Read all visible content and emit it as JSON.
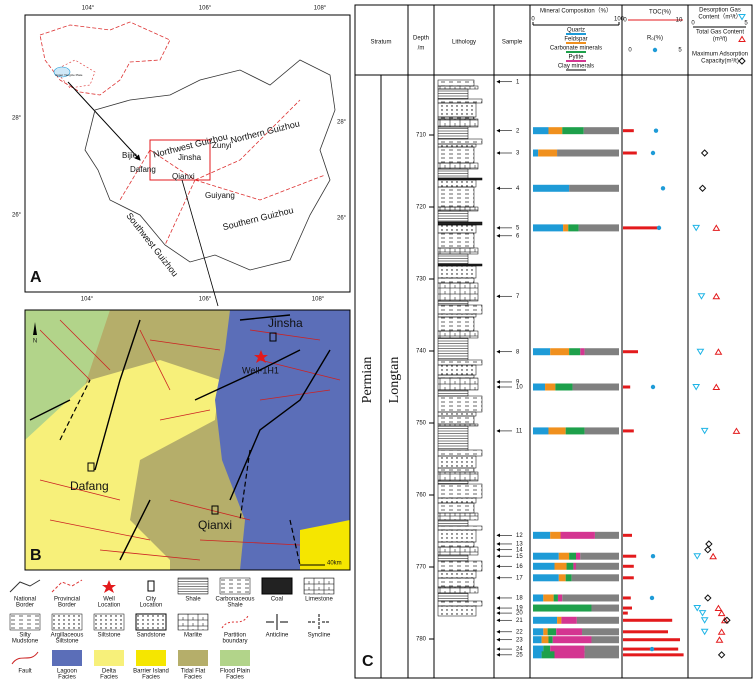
{
  "panel_a": {
    "label": "A",
    "top_lon": [
      "104°",
      "106°",
      "108°"
    ],
    "bottom_lon": [
      "104°",
      "106°",
      "108°"
    ],
    "left_lat": [
      "28°",
      "26°"
    ],
    "right_lat": [
      "28°",
      "26°"
    ],
    "inset": "Upper Yangtze Plate",
    "cities": [
      "Zunyi",
      "Bijie",
      "Jinsha",
      "Dafang",
      "Qianxi",
      "Guiyang"
    ],
    "regions": [
      "Northwest Guizhou",
      "Northern Guizhou",
      "Southwest Guizhou",
      "Southern Guizhou"
    ]
  },
  "panel_b": {
    "label": "B",
    "north": "N",
    "cities": [
      "Jinsha",
      "Dafang",
      "Qianxi"
    ],
    "well": "Well-1H1",
    "scale": "40km"
  },
  "legend": [
    [
      "National",
      "Border"
    ],
    [
      "Provincial",
      "Border"
    ],
    [
      "Well",
      "Location"
    ],
    [
      "City",
      "Location"
    ],
    [
      "Shale"
    ],
    [
      "Carbonaceous",
      "Shale"
    ],
    [
      "Coal"
    ],
    [
      "Limestone"
    ],
    [
      "Silty",
      "Mudstone"
    ],
    [
      "Argillaceous",
      "Siltstone"
    ],
    [
      "Siltstone"
    ],
    [
      "Sandstone"
    ],
    [
      "Marlite"
    ],
    [
      "Partition",
      "boundary"
    ],
    [
      "Anticline"
    ],
    [
      "Syncline"
    ],
    [
      "Fault"
    ],
    [
      "Lagoon",
      "Facies"
    ],
    [
      "Delta",
      "Facies"
    ],
    [
      "Barrier Island",
      "Facies"
    ],
    [
      "Tidal Flat",
      "Facies"
    ],
    [
      "Flood Plain",
      "Facies"
    ]
  ],
  "panel_c": {
    "label": "C",
    "headers": {
      "stratum": "Stratum",
      "depth": [
        "Depth",
        "/m"
      ],
      "lithology": "Lithology",
      "sample": "Sample"
    },
    "system": "Permian",
    "formation": "Longtan",
    "depth_ticks": [
      710,
      720,
      730,
      740,
      750,
      760,
      770,
      780
    ],
    "mineral": {
      "title": "Mineral Composition（%）",
      "axis": [
        0,
        100
      ],
      "names": [
        "Quartz",
        "Feldspar",
        "Carbonate minerals",
        "Pytite",
        "Clay minerals"
      ],
      "colors": [
        "#1e9bd7",
        "#f0901e",
        "#1ea04b",
        "#d43591",
        "#808080"
      ]
    },
    "toc": {
      "title": "TOC(%)",
      "axis": [
        0,
        10
      ],
      "color": "#e31a1c"
    },
    "ro": {
      "title": "Rₒ(%)",
      "axis": [
        0,
        5
      ],
      "color": "#1e9bd7"
    },
    "gas": {
      "titles": [
        [
          "Desorption Gas",
          "Content（m³/t）"
        ],
        [
          "Total Gas Content",
          "(m³/t)"
        ],
        [
          "Maximum Adsorption",
          "Capacity(m³/t)"
        ]
      ],
      "axis": [
        0,
        5
      ],
      "colors": [
        "#1eb4e6",
        "#e31a1c",
        "#111111"
      ]
    },
    "samples": [
      {
        "name": "1",
        "depth": 702.6,
        "composition": null,
        "toc": null,
        "ro": null,
        "desorption": null,
        "total": null,
        "adsorption": null
      },
      {
        "name": "2",
        "depth": 709.4,
        "composition": [
          18,
          16,
          25,
          0,
          41
        ],
        "toc": 1.8,
        "ro": 2.6,
        "desorption": null,
        "total": null,
        "adsorption": null
      },
      {
        "name": "3",
        "depth": 712.5,
        "composition": [
          6,
          22,
          0,
          0,
          72
        ],
        "toc": 2.3,
        "ro": 2.3,
        "desorption": null,
        "total": null,
        "adsorption": 1.1
      },
      {
        "name": "4",
        "depth": 717.4,
        "composition": [
          42,
          0,
          0,
          0,
          58
        ],
        "toc": null,
        "ro": 3.3,
        "desorption": null,
        "total": null,
        "adsorption": 0.9
      },
      {
        "name": "5",
        "depth": 722.9,
        "composition": [
          35,
          6,
          12,
          0,
          47
        ],
        "toc": 6.2,
        "ro": 2.9,
        "desorption": 0.3,
        "total": 2.2,
        "adsorption": null
      },
      {
        "name": "6",
        "depth": 724.0,
        "composition": null,
        "toc": null,
        "ro": null,
        "desorption": null,
        "total": null,
        "adsorption": null
      },
      {
        "name": "7",
        "depth": 732.4,
        "composition": null,
        "toc": null,
        "ro": null,
        "desorption": 0.8,
        "total": 2.2,
        "adsorption": null
      },
      {
        "name": "8",
        "depth": 740.1,
        "composition": [
          20,
          22,
          13,
          5,
          40
        ],
        "toc": 2.5,
        "ro": null,
        "desorption": 0.7,
        "total": 2.4,
        "adsorption": null
      },
      {
        "name": "9",
        "depth": 744.3,
        "composition": null,
        "toc": null,
        "ro": null,
        "desorption": null,
        "total": null,
        "adsorption": null
      },
      {
        "name": "10",
        "depth": 745.0,
        "composition": [
          14,
          12,
          20,
          0,
          54
        ],
        "toc": 1.2,
        "ro": 2.3,
        "desorption": 0.3,
        "total": 2.2,
        "adsorption": null
      },
      {
        "name": "11",
        "depth": 751.1,
        "composition": [
          18,
          20,
          22,
          0,
          40
        ],
        "toc": 1.8,
        "ro": null,
        "desorption": 1.1,
        "total": 4.1,
        "adsorption": null
      },
      {
        "name": "12",
        "depth": 765.6,
        "composition": [
          20,
          12,
          0,
          40,
          28
        ],
        "toc": 1.5,
        "ro": null,
        "desorption": null,
        "total": null,
        "adsorption": null
      },
      {
        "name": "13",
        "depth": 766.8,
        "composition": null,
        "toc": null,
        "ro": null,
        "desorption": null,
        "total": null,
        "adsorption": 1.5
      },
      {
        "name": "14",
        "depth": 767.6,
        "composition": null,
        "toc": null,
        "ro": null,
        "desorption": null,
        "total": null,
        "adsorption": 1.4
      },
      {
        "name": "15",
        "depth": 768.5,
        "composition": [
          30,
          12,
          8,
          5,
          45
        ],
        "toc": 2.2,
        "ro": 2.3,
        "desorption": 0.4,
        "total": 1.9,
        "adsorption": null
      },
      {
        "name": "16",
        "depth": 769.9,
        "composition": [
          25,
          14,
          8,
          3,
          50
        ],
        "toc": 1.8,
        "ro": null,
        "desorption": null,
        "total": null,
        "adsorption": null
      },
      {
        "name": "17",
        "depth": 771.5,
        "composition": [
          30,
          8,
          7,
          0,
          55
        ],
        "toc": 1.8,
        "ro": null,
        "desorption": null,
        "total": null,
        "adsorption": null
      },
      {
        "name": "18",
        "depth": 774.3,
        "composition": [
          12,
          12,
          5,
          5,
          66
        ],
        "toc": 1.3,
        "ro": 2.2,
        "desorption": null,
        "total": null,
        "adsorption": 1.4
      },
      {
        "name": "19",
        "depth": 775.7,
        "composition": [
          0,
          0,
          68,
          0,
          32
        ],
        "toc": 1.5,
        "ro": null,
        "desorption": 0.4,
        "total": 2.4,
        "adsorption": null
      },
      {
        "name": "20",
        "depth": 776.4,
        "composition": null,
        "toc": 0.8,
        "ro": null,
        "desorption": 0.9,
        "total": 2.7,
        "adsorption": null
      },
      {
        "name": "21",
        "depth": 777.4,
        "composition": [
          28,
          5,
          0,
          18,
          49
        ],
        "toc": 8.2,
        "ro": null,
        "desorption": 1.1,
        "total": 3.0,
        "adsorption": 3.2
      },
      {
        "name": "22",
        "depth": 779.0,
        "composition": [
          12,
          5,
          10,
          30,
          43
        ],
        "toc": 7.5,
        "ro": null,
        "desorption": 1.1,
        "total": 2.7,
        "adsorption": null
      },
      {
        "name": "23",
        "depth": 780.1,
        "composition": [
          10,
          8,
          5,
          45,
          32
        ],
        "toc": 9.5,
        "ro": null,
        "desorption": null,
        "total": 2.5,
        "adsorption": null
      },
      {
        "name": "24",
        "depth": 781.4,
        "composition": [
          12,
          0,
          8,
          40,
          40
        ],
        "toc": 9.2,
        "ro": 2.2,
        "desorption": null,
        "total": null,
        "adsorption": null
      },
      {
        "name": "25",
        "depth": 782.2,
        "composition": [
          10,
          0,
          15,
          35,
          40
        ],
        "toc": 10.1,
        "ro": null,
        "desorption": null,
        "total": null,
        "adsorption": 2.7
      }
    ]
  }
}
